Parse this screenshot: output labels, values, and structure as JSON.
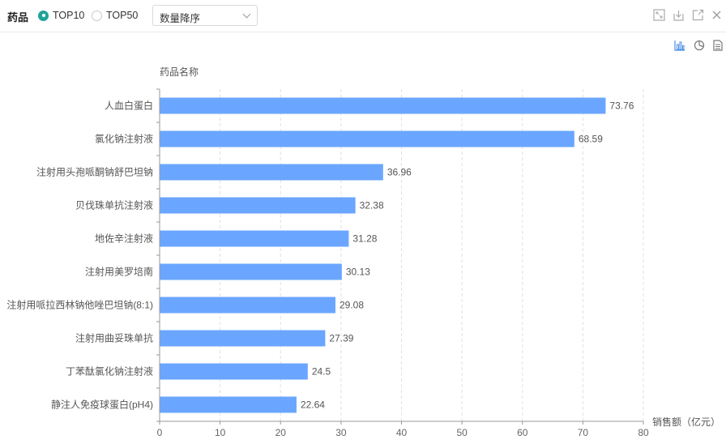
{
  "filter": {
    "label": "药品",
    "options": [
      {
        "label": "TOP10",
        "selected": true
      },
      {
        "label": "TOP50",
        "selected": false
      }
    ],
    "sort_value": "数量降序"
  },
  "toolbar_icons": [
    "fullscreen-icon",
    "download-icon",
    "open-external-icon",
    "close-icon"
  ],
  "view_icons": [
    "bar-chart-icon",
    "pie-chart-icon",
    "document-icon"
  ],
  "colors": {
    "bar": "#6aa6ff",
    "accent": "#22a39a",
    "grid": "#e0e0e0"
  },
  "chart_data": {
    "type": "bar",
    "orientation": "horizontal",
    "ylabel": "药品名称",
    "xlabel": "销售额（亿元）",
    "categories": [
      "人血白蛋白",
      "氯化钠注射液",
      "注射用头孢哌酮钠舒巴坦钠",
      "贝伐珠单抗注射液",
      "地佐辛注射液",
      "注射用美罗培南",
      "注射用哌拉西林钠他唑巴坦钠(8:1)",
      "注射用曲妥珠单抗",
      "丁苯酞氯化钠注射液",
      "静注人免疫球蛋白(pH4)"
    ],
    "values": [
      73.76,
      68.59,
      36.96,
      32.38,
      31.28,
      30.13,
      29.08,
      27.39,
      24.5,
      22.64
    ],
    "value_labels": [
      "73.76",
      "68.59",
      "36.96",
      "32.38",
      "31.28",
      "30.13",
      "29.08",
      "27.39",
      "24.5",
      "22.64"
    ],
    "xlim": [
      0,
      80
    ],
    "xticks": [
      "0",
      "10",
      "20",
      "30",
      "40",
      "50",
      "60",
      "70",
      "80"
    ],
    "grid": true
  }
}
